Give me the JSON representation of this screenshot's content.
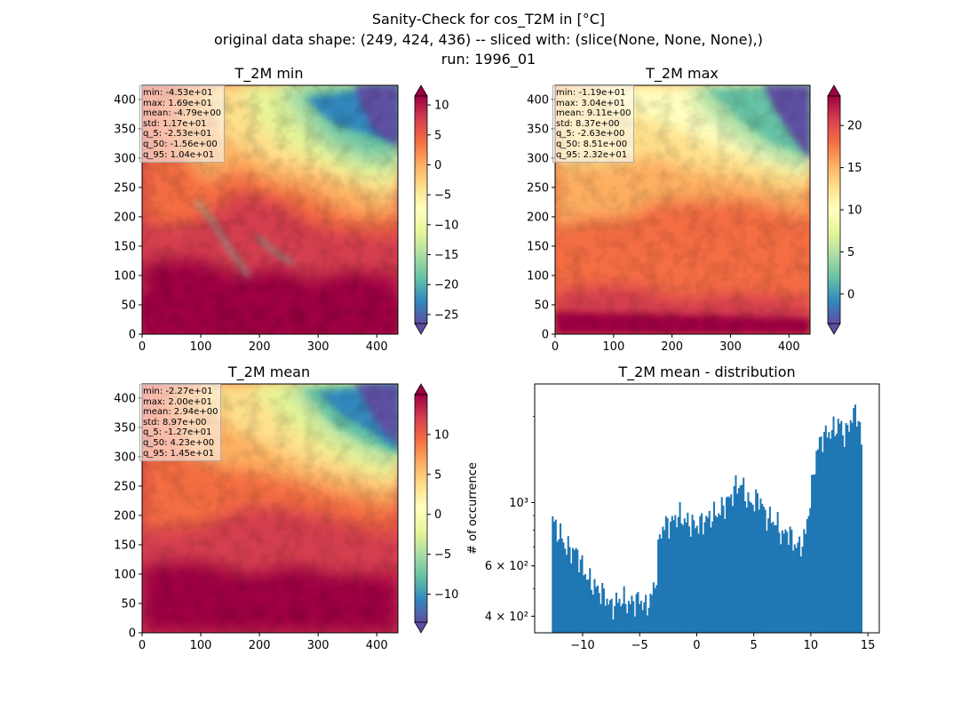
{
  "figure": {
    "title_lines": [
      "Sanity-Check for cos_T2M in [°C]",
      "original data shape: (249, 424, 436) -- sliced with: (slice(None, None, None),)",
      "run: 1996_01"
    ]
  },
  "colormap": "Spectral_r",
  "panels": [
    {
      "title": "T_2M min",
      "stats": [
        "min: -4.53e+01",
        "max: 1.69e+01",
        "mean: -4.79e+00",
        "std: 1.17e+01",
        "q_5: -2.53e+01",
        "q_50: -1.56e+00",
        "q_95: 1.04e+01"
      ],
      "colorbar": {
        "vmin": -26.5,
        "vmax": 11.5,
        "ticks": [
          10,
          5,
          0,
          -5,
          -10,
          -15,
          -20,
          -25
        ],
        "tick_labels": [
          "10",
          "5",
          "0",
          "−5",
          "−10",
          "−15",
          "−20",
          "−25"
        ]
      }
    },
    {
      "title": "T_2M max",
      "stats": [
        "min: -1.19e+01",
        "max: 3.04e+01",
        "mean: 9.11e+00",
        "std: 8.37e+00",
        "q_5: -2.63e+00",
        "q_50: 8.51e+00",
        "q_95: 2.32e+01"
      ],
      "colorbar": {
        "vmin": -3.5,
        "vmax": 23.5,
        "ticks": [
          20,
          15,
          10,
          5,
          0
        ],
        "tick_labels": [
          "20",
          "15",
          "10",
          "5",
          "0"
        ]
      }
    },
    {
      "title": "T_2M mean",
      "stats": [
        "min: -2.27e+01",
        "max: 2.00e+01",
        "mean: 2.94e+00",
        "std: 8.97e+00",
        "q_5: -1.27e+01",
        "q_50: 4.23e+00",
        "q_95: 1.45e+01"
      ],
      "colorbar": {
        "vmin": -13.5,
        "vmax": 15,
        "ticks": [
          10,
          5,
          0,
          -5,
          -10
        ],
        "tick_labels": [
          "10",
          "5",
          "0",
          "−5",
          "−10"
        ]
      }
    }
  ],
  "map_axes": {
    "xticks": [
      0,
      100,
      200,
      300,
      400
    ],
    "yticks": [
      0,
      50,
      100,
      150,
      200,
      250,
      300,
      350,
      400
    ],
    "xlim": [
      0,
      436
    ],
    "ylim": [
      0,
      424
    ]
  },
  "chart_data": {
    "type": "bar",
    "title": "T_2M mean - distribution",
    "xlabel": "",
    "ylabel": "# of occurrence",
    "yscale": "log",
    "xlim": [
      -14.2,
      16.0
    ],
    "ylim": [
      350,
      2600
    ],
    "xticks": [
      -10,
      -5,
      0,
      5,
      10,
      15
    ],
    "xtick_labels": [
      "−10",
      "−5",
      "0",
      "5",
      "10",
      "15"
    ],
    "yticks": [
      400,
      600,
      1000
    ],
    "ytick_labels": [
      "4 × 10²",
      "6 × 10²",
      "10³"
    ],
    "bar_color": "#1f77b4",
    "profile_x": [
      -12.7,
      -12.4,
      -12.0,
      -11.5,
      -11.0,
      -10.5,
      -10.0,
      -9.5,
      -9.0,
      -8.5,
      -8.0,
      -7.5,
      -7.0,
      -6.5,
      -6.0,
      -5.5,
      -5.0,
      -4.5,
      -4.0,
      -3.5,
      -3.3,
      -3.0,
      -2.5,
      -2.2,
      -2.0,
      -1.5,
      -1.0,
      0.0,
      1.0,
      2.0,
      3.0,
      3.5,
      4.0,
      4.5,
      5.0,
      5.5,
      6.0,
      7.0,
      7.5,
      8.0,
      8.5,
      9.0,
      9.5,
      10.0,
      10.5,
      11.0,
      11.5,
      12.0,
      12.5,
      13.0,
      13.5,
      14.0,
      14.3,
      14.5
    ],
    "profile_y": [
      920,
      810,
      780,
      700,
      680,
      670,
      590,
      540,
      510,
      490,
      470,
      430,
      450,
      460,
      440,
      450,
      460,
      430,
      460,
      560,
      750,
      820,
      850,
      840,
      880,
      900,
      860,
      830,
      880,
      930,
      1050,
      1150,
      1150,
      1000,
      1000,
      1050,
      900,
      850,
      760,
      800,
      720,
      700,
      760,
      1050,
      1500,
      1700,
      1750,
      1800,
      1900,
      1700,
      1950,
      2100,
      1800,
      1500
    ]
  }
}
